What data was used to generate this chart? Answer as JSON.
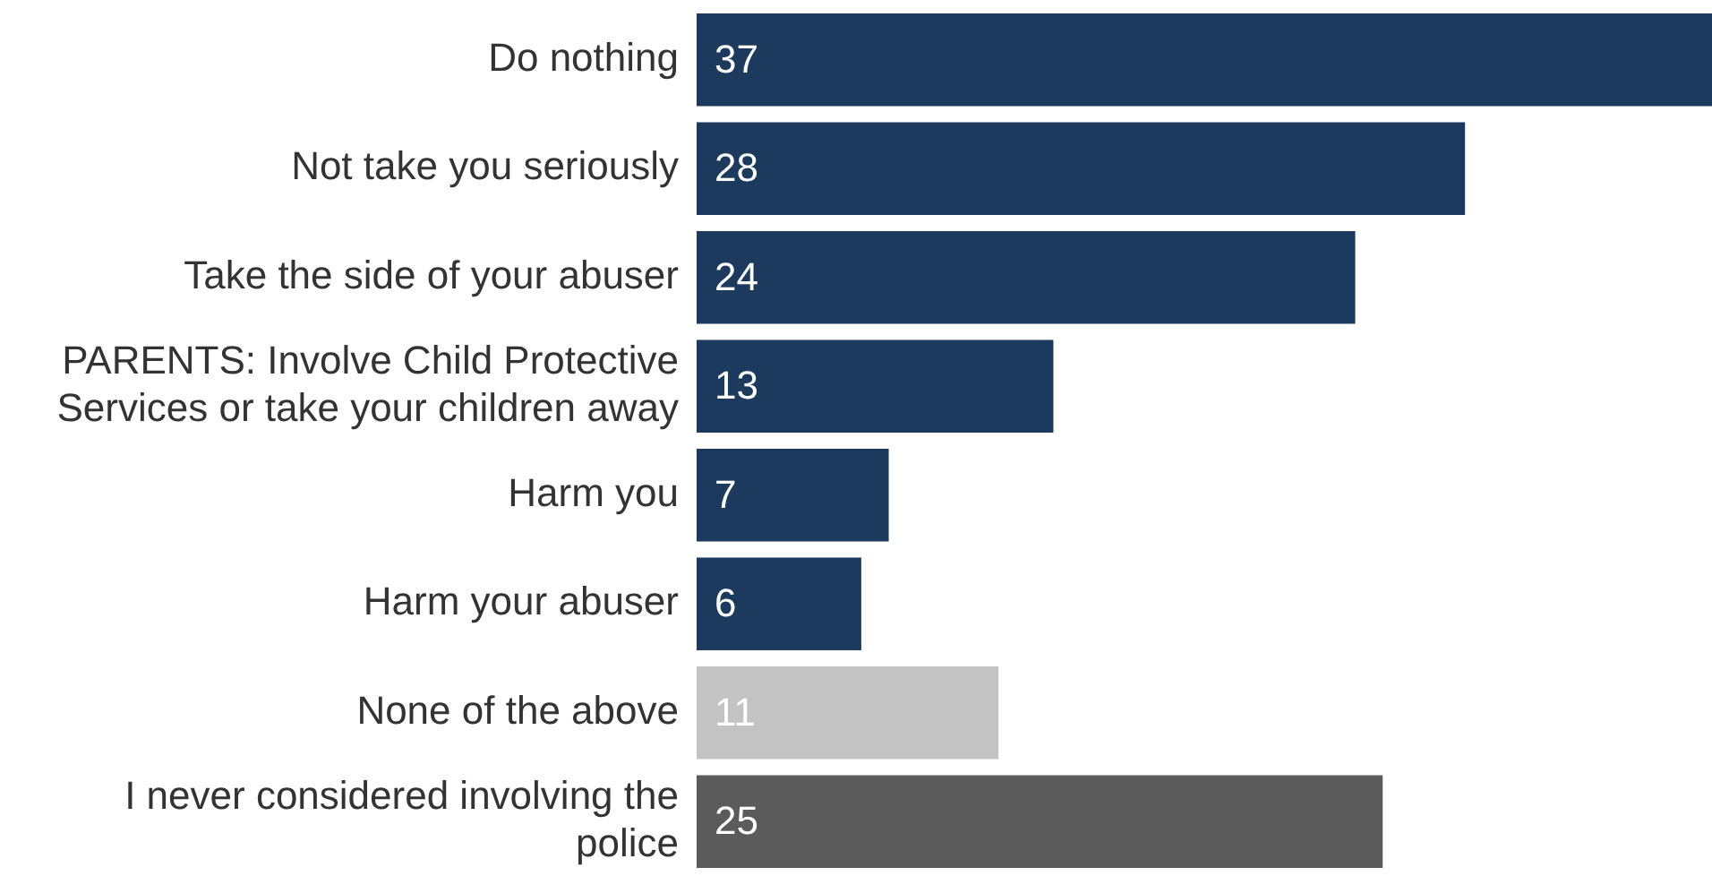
{
  "chart_data": {
    "type": "bar",
    "orientation": "horizontal",
    "data_labels": true,
    "categories": [
      "Do nothing",
      "Not take you seriously",
      "Take the side of your abuser",
      "PARENTS: Involve Child Protective Services or take your children away",
      "Harm you",
      "Harm your abuser",
      "None of the above",
      "I never considered involving the police"
    ],
    "values": [
      37,
      28,
      24,
      13,
      7,
      6,
      11,
      25
    ],
    "colors": [
      "#1b3a5e",
      "#1b3a5e",
      "#1b3a5e",
      "#1b3a5e",
      "#1b3a5e",
      "#1b3a5e",
      "#c3c3c3",
      "#5b5b5b"
    ]
  }
}
